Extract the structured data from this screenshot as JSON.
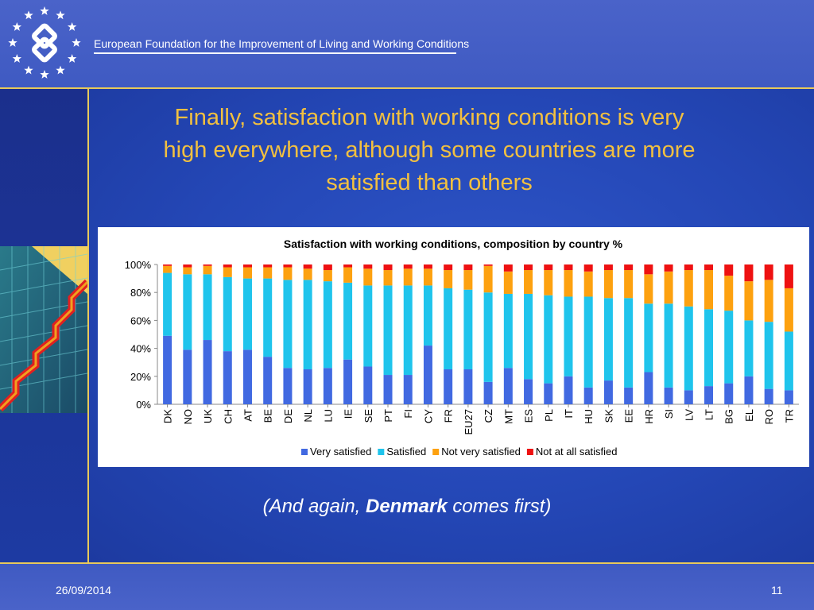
{
  "header": {
    "org_name": "European Foundation for the Improvement of Living and Working Conditions",
    "logo_icon": "eu-stars-logo-icon"
  },
  "slide": {
    "title_line1": "Finally, satisfaction with working conditions is very",
    "title_line2": "high everywhere, although some countries are more",
    "title_line3": "satisfied than others",
    "subtitle_pre": "(And again, ",
    "subtitle_bold": "Denmark",
    "subtitle_post": " comes first)"
  },
  "footer": {
    "date": "26/09/2014",
    "page": "11"
  },
  "colors": {
    "title": "#f2c040",
    "background": "#2447b6"
  },
  "chart_data": {
    "type": "bar",
    "stacked": true,
    "percent": true,
    "title": "Satisfaction with working conditions, composition by country %",
    "categories": [
      "DK",
      "NO",
      "UK",
      "CH",
      "AT",
      "BE",
      "DE",
      "NL",
      "LU",
      "IE",
      "SE",
      "PT",
      "FI",
      "CY",
      "FR",
      "EU27",
      "CZ",
      "MT",
      "ES",
      "PL",
      "IT",
      "HU",
      "SK",
      "EE",
      "HR",
      "SI",
      "LV",
      "LT",
      "BG",
      "EL",
      "RO",
      "TR"
    ],
    "series": [
      {
        "name": "Very satisfied",
        "color": "#4169e1",
        "values": [
          49,
          39,
          46,
          38,
          39,
          34,
          26,
          25,
          26,
          32,
          27,
          21,
          21,
          42,
          25,
          25,
          16,
          26,
          18,
          15,
          20,
          12,
          17,
          12,
          23,
          12,
          10,
          13,
          15,
          20,
          11,
          10
        ]
      },
      {
        "name": "Satisfied",
        "color": "#1fc4ec",
        "values": [
          45,
          54,
          47,
          53,
          51,
          56,
          63,
          64,
          62,
          55,
          58,
          64,
          64,
          43,
          58,
          57,
          64,
          53,
          61,
          63,
          57,
          65,
          59,
          64,
          49,
          60,
          60,
          55,
          52,
          40,
          48,
          42
        ]
      },
      {
        "name": "Not very satisfied",
        "color": "#fda10f",
        "values": [
          5,
          5,
          6,
          7,
          8,
          8,
          9,
          8,
          8,
          11,
          12,
          11,
          12,
          12,
          13,
          14,
          19,
          16,
          17,
          18,
          19,
          18,
          20,
          20,
          21,
          23,
          26,
          28,
          25,
          28,
          30,
          31
        ]
      },
      {
        "name": "Not at all satisfied",
        "color": "#ee1111",
        "values": [
          1,
          2,
          1,
          2,
          2,
          2,
          2,
          3,
          4,
          2,
          3,
          4,
          3,
          3,
          4,
          4,
          1,
          5,
          4,
          4,
          4,
          5,
          4,
          4,
          7,
          5,
          4,
          4,
          8,
          12,
          11,
          17
        ]
      }
    ],
    "yticks": [
      "0%",
      "20%",
      "40%",
      "60%",
      "80%",
      "100%"
    ],
    "ylim": [
      0,
      100
    ],
    "legend": "bottom"
  }
}
